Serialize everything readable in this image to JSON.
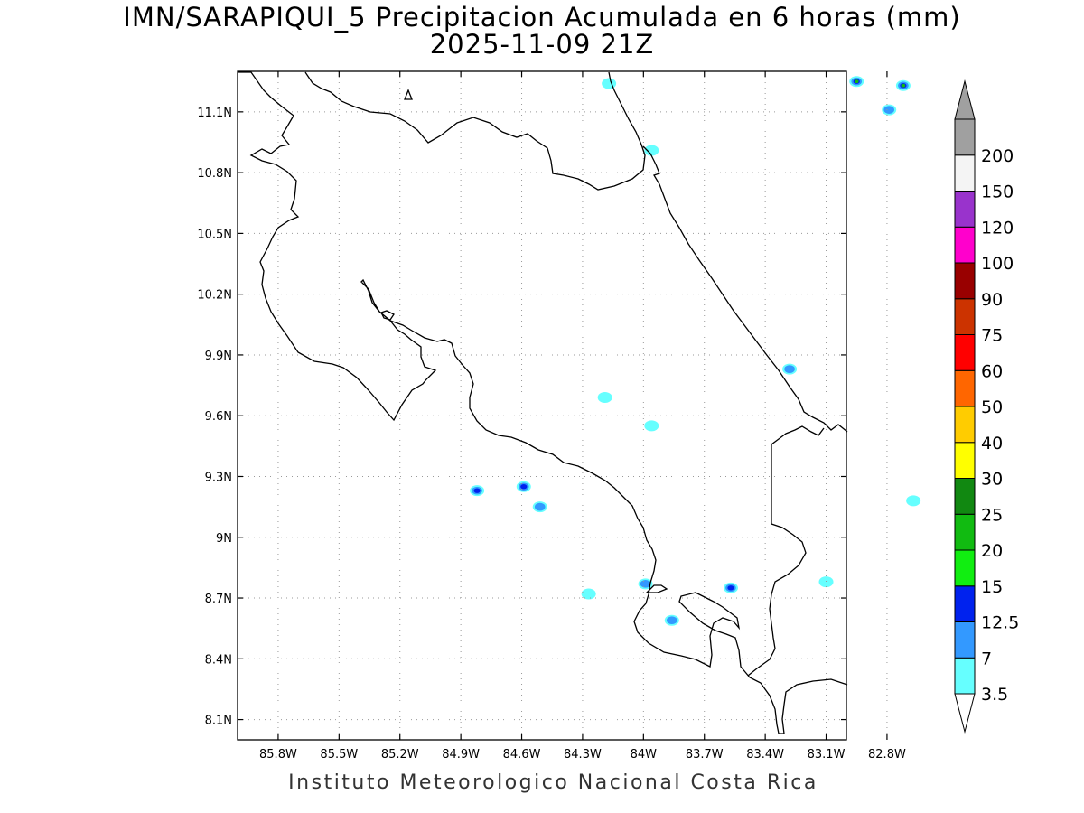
{
  "title": {
    "line1": "IMN/SARAPIQUI_5 Precipitacion Acumulada en 6 horas (mm)",
    "line2": "2025-11-09 21Z"
  },
  "footer": "Instituto Meteorologico Nacional Costa Rica",
  "map": {
    "lon_range": [
      -86.0,
      -83.0
    ],
    "lat_range": [
      8.0,
      11.3
    ],
    "lat_ticks": [
      {
        "value": 11.1,
        "label": "11.1N"
      },
      {
        "value": 10.8,
        "label": "10.8N"
      },
      {
        "value": 10.5,
        "label": "10.5N"
      },
      {
        "value": 10.2,
        "label": "10.2N"
      },
      {
        "value": 9.9,
        "label": "9.9N"
      },
      {
        "value": 9.6,
        "label": "9.6N"
      },
      {
        "value": 9.3,
        "label": "9.3N"
      },
      {
        "value": 9.0,
        "label": "9N"
      },
      {
        "value": 8.7,
        "label": "8.7N"
      },
      {
        "value": 8.4,
        "label": "8.4N"
      },
      {
        "value": 8.1,
        "label": "8.1N"
      }
    ],
    "lon_ticks": [
      {
        "value": -85.8,
        "label": "85.8W"
      },
      {
        "value": -85.5,
        "label": "85.5W"
      },
      {
        "value": -85.2,
        "label": "85.2W"
      },
      {
        "value": -84.9,
        "label": "84.9W"
      },
      {
        "value": -84.6,
        "label": "84.6W"
      },
      {
        "value": -84.3,
        "label": "84.3W"
      },
      {
        "value": -84.0,
        "label": "84W"
      },
      {
        "value": -83.7,
        "label": "83.7W"
      },
      {
        "value": -83.4,
        "label": "83.4W"
      },
      {
        "value": -83.1,
        "label": "83.1W"
      },
      {
        "value": -82.8,
        "label": "82.8W"
      }
    ],
    "grid": "dotted"
  },
  "colorbar": {
    "levels": [
      "3.5",
      "7",
      "12.5",
      "15",
      "20",
      "25",
      "30",
      "40",
      "50",
      "60",
      "75",
      "90",
      "100",
      "120",
      "150",
      "200"
    ],
    "colors": [
      "#66ffff",
      "#3399ff",
      "#0022ee",
      "#11ee11",
      "#11bb11",
      "#118811",
      "#ffff00",
      "#ffcc00",
      "#ff6600",
      "#ff0000",
      "#cc3300",
      "#990000",
      "#ff00cc",
      "#9933cc",
      "#f4f4f4",
      "#a0a0a0"
    ],
    "under_color": "#ffffff",
    "over_color": "#a0a0a0"
  },
  "precip_cells": [
    {
      "lon": -84.82,
      "lat": 9.23,
      "max_class": 2
    },
    {
      "lon": -84.59,
      "lat": 9.25,
      "max_class": 2
    },
    {
      "lon": -84.51,
      "lat": 9.15,
      "max_class": 1
    },
    {
      "lon": -84.19,
      "lat": 9.69,
      "max_class": 0
    },
    {
      "lon": -83.96,
      "lat": 9.55,
      "max_class": 0
    },
    {
      "lon": -83.28,
      "lat": 9.83,
      "max_class": 1
    },
    {
      "lon": -83.99,
      "lat": 8.77,
      "max_class": 1
    },
    {
      "lon": -83.86,
      "lat": 8.59,
      "max_class": 1
    },
    {
      "lon": -83.57,
      "lat": 8.75,
      "max_class": 2
    },
    {
      "lon": -84.27,
      "lat": 8.72,
      "max_class": 0
    },
    {
      "lon": -83.1,
      "lat": 8.78,
      "max_class": 0
    },
    {
      "lon": -83.96,
      "lat": 10.91,
      "max_class": 0
    },
    {
      "lon": -84.17,
      "lat": 11.24,
      "max_class": 0
    },
    {
      "lon": -82.95,
      "lat": 11.25,
      "max_class": 4
    },
    {
      "lon": -82.72,
      "lat": 11.23,
      "max_class": 4
    },
    {
      "lon": -82.79,
      "lat": 11.11,
      "max_class": 1
    },
    {
      "lon": -82.67,
      "lat": 9.18,
      "max_class": 0
    }
  ]
}
